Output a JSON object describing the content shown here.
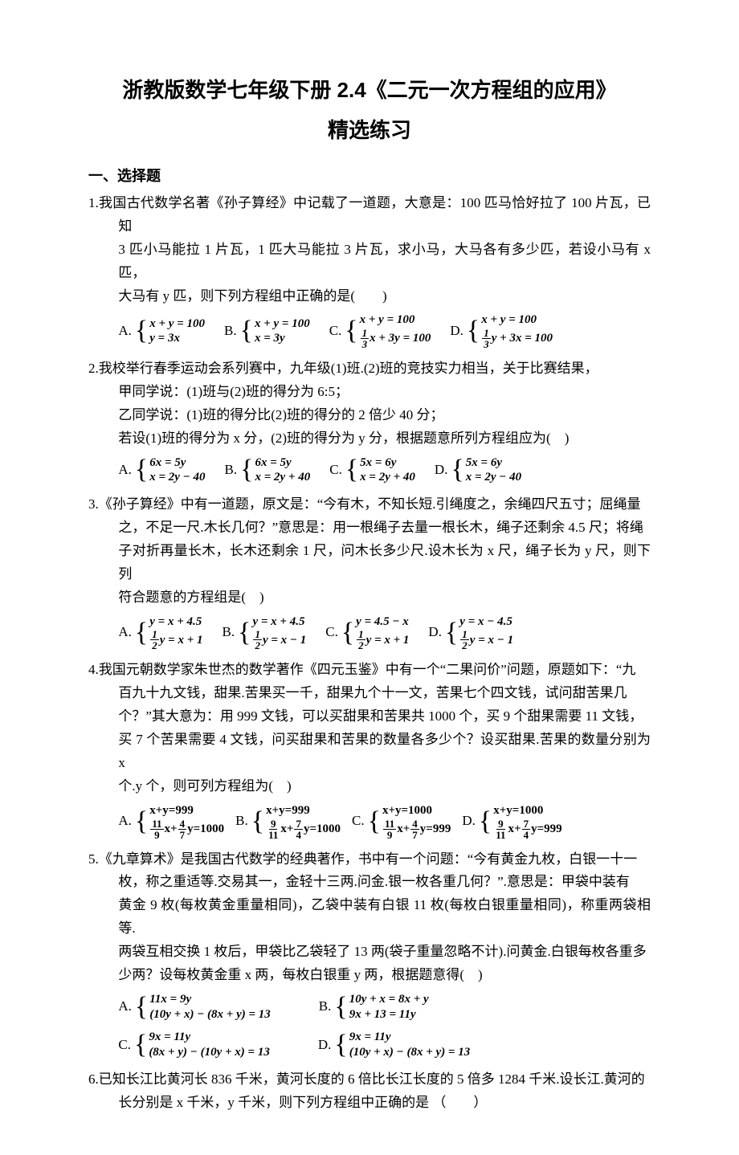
{
  "title": "浙教版数学七年级下册 2.4《二元一次方程组的应用》",
  "subtitle": "精选练习",
  "section1": "一、选择题",
  "q1": {
    "num": "1.",
    "text_l1": "我国古代数学名著《孙子算经》中记载了一道题，大意是：100 匹马恰好拉了 100 片瓦，已知",
    "text_l2": "3 匹小马能拉 1 片瓦，1 匹大马能拉 3 片瓦，求小马，大马各有多少匹，若设小马有 x 匹，",
    "text_l3": "大马有 y 匹，则下列方程组中正确的是(　　)",
    "A": {
      "l1": "x + y = 100",
      "l2": "y = 3x"
    },
    "B": {
      "l1": "x + y = 100",
      "l2": "x = 3y"
    },
    "C": {
      "l1": "x + y = 100",
      "l2_pre": "",
      "l2_frac_num": "1",
      "l2_frac_den": "3",
      "l2_post": "x + 3y = 100"
    },
    "D": {
      "l1": "x + y = 100",
      "l2_pre": "",
      "l2_frac_num": "1",
      "l2_frac_den": "3",
      "l2_post": "y + 3x = 100"
    }
  },
  "q2": {
    "num": "2.",
    "text_l1": "我校举行春季运动会系列赛中，九年级(1)班.(2)班的竞技实力相当，关于比赛结果，",
    "text_l2": "甲同学说：(1)班与(2)班的得分为 6:5；",
    "text_l3": "乙同学说：(1)班的得分比(2)班的得分的 2 倍少 40 分；",
    "text_l4": "若设(1)班的得分为 x 分，(2)班的得分为 y 分，根据题意所列方程组应为(　)",
    "A": {
      "l1": "6x = 5y",
      "l2": "x = 2y − 40"
    },
    "B": {
      "l1": "6x = 5y",
      "l2": "x = 2y + 40"
    },
    "C": {
      "l1": "5x = 6y",
      "l2": "x = 2y + 40"
    },
    "D": {
      "l1": "5x = 6y",
      "l2": "x = 2y − 40"
    }
  },
  "q3": {
    "num": "3.",
    "text_l1": "《孙子算经》中有一道题，原文是：“今有木，不知长短.引绳度之，余绳四尺五寸；屈绳量",
    "text_l2": "之，不足一尺.木长几何？”意思是：用一根绳子去量一根长木，绳子还剩余 4.5 尺；将绳",
    "text_l3": "子对折再量长木，长木还剩余 1 尺，问木长多少尺.设木长为 x 尺，绳子长为 y 尺，则下列",
    "text_l4": "符合题意的方程组是(　)",
    "A": {
      "l1": "y = x + 4.5",
      "l2_frac_num": "1",
      "l2_frac_den": "2",
      "l2_post": "y = x + 1"
    },
    "B": {
      "l1": "y = x + 4.5",
      "l2_frac_num": "1",
      "l2_frac_den": "2",
      "l2_post": "y = x − 1"
    },
    "C": {
      "l1": "y = 4.5 − x",
      "l2_frac_num": "1",
      "l2_frac_den": "2",
      "l2_post": "y = x + 1"
    },
    "D": {
      "l1": "y = x − 4.5",
      "l2_frac_num": "1",
      "l2_frac_den": "2",
      "l2_post": "y = x − 1"
    }
  },
  "q4": {
    "num": "4.",
    "text_l1": "我国元朝数学家朱世杰的数学著作《四元玉鉴》中有一个“二果问价”问题，原题如下：“九",
    "text_l2": "百九十九文钱，甜果.苦果买一千，甜果九个十一文，苦果七个四文钱，试问甜苦果几",
    "text_l3": "个？”其大意为：用 999 文钱，可以买甜果和苦果共 1000 个，买 9 个甜果需要 11 文钱，",
    "text_l4": "买 7 个苦果需要 4 文钱，问买甜果和苦果的数量各多少个？设买甜果.苦果的数量分别为 x",
    "text_l5": "个.y 个，则可列方程组为(　)",
    "A": {
      "l1": "x+y=999",
      "f1n": "11",
      "f1d": "9",
      "mid": "x+",
      "f2n": "4",
      "f2d": "7",
      "post": "y=1000"
    },
    "B": {
      "l1": "x+y=999",
      "f1n": "9",
      "f1d": "11",
      "mid": "x+",
      "f2n": "7",
      "f2d": "4",
      "post": "y=1000"
    },
    "C": {
      "l1": "x+y=1000",
      "f1n": "11",
      "f1d": "9",
      "mid": "x+",
      "f2n": "4",
      "f2d": "7",
      "post": "y=999"
    },
    "D": {
      "l1": "x+y=1000",
      "f1n": "9",
      "f1d": "11",
      "mid": "x+",
      "f2n": "7",
      "f2d": "4",
      "post": "y=999"
    }
  },
  "q5": {
    "num": "5.",
    "text_l1": "《九章算术》是我国古代数学的经典著作，书中有一个问题：“今有黄金九枚，白银一十一",
    "text_l2": "枚，称之重适等.交易其一，金轻十三两.问金.银一枚各重几何？”.意思是：甲袋中装有",
    "text_l3": "黄金 9 枚(每枚黄金重量相同)，乙袋中装有白银 11 枚(每枚白银重量相同)，称重两袋相等.",
    "text_l4": "两袋互相交换 1 枚后，甲袋比乙袋轻了 13 两(袋子重量忽略不计).问黄金.白银每枚各重多",
    "text_l5": "少两？设每枚黄金重 x 两，每枚白银重 y 两，根据题意得(　)",
    "A": {
      "l1": "11x = 9y",
      "l2": "(10y + x) − (8x + y) = 13"
    },
    "B": {
      "l1": "10y + x = 8x + y",
      "l2": "9x + 13 = 11y"
    },
    "C": {
      "l1": "9x = 11y",
      "l2": "(8x + y) − (10y + x) = 13"
    },
    "D": {
      "l1": "9x = 11y",
      "l2": "(10y + x) − (8x + y) = 13"
    }
  },
  "q6": {
    "num": "6.",
    "text_l1": "已知长江比黄河长 836 千米，黄河长度的 6 倍比长江长度的 5 倍多 1284 千米.设长江.黄河的",
    "text_l2": "长分别是 x 千米，y 千米，则下列方程组中正确的是 （　　）"
  },
  "labels": {
    "A": "A.",
    "B": "B.",
    "C": "C.",
    "D": "D."
  }
}
